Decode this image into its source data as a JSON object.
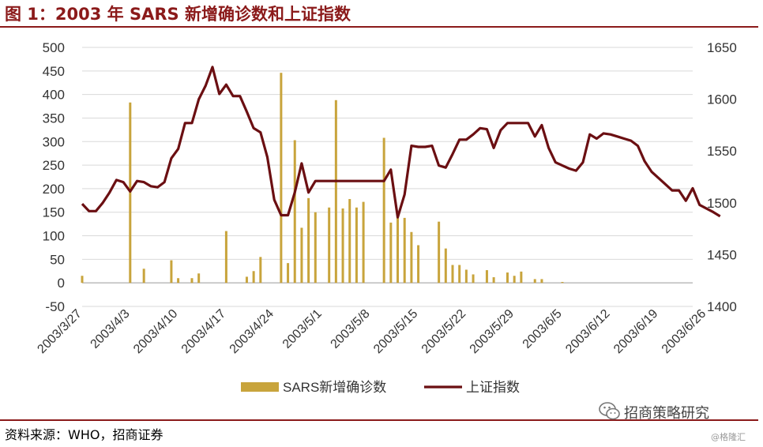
{
  "header": {
    "title": "图 1：2003 年 SARS 新增确诊数和上证指数"
  },
  "footer": {
    "source": "资料来源：WHO，招商证券"
  },
  "watermark": {
    "name": "招商策略研究",
    "sub": "@格隆汇",
    "icon": "wechat-icon"
  },
  "colors": {
    "bar": "#C8A43C",
    "line": "#6B0F12",
    "accent": "#8B1A1A",
    "grid": "#D9D9D9"
  },
  "chart_data": {
    "type": "bar+line",
    "categories": [
      "2003/3/27",
      "2003/4/3",
      "2003/4/10",
      "2003/4/17",
      "2003/4/24",
      "2003/5/1",
      "2003/5/8",
      "2003/5/15",
      "2003/5/22",
      "2003/5/29",
      "2003/6/5",
      "2003/6/12",
      "2003/6/19",
      "2003/6/26"
    ],
    "x_range": [
      0,
      89
    ],
    "left_axis": {
      "ticks": [
        "500",
        "450",
        "400",
        "350",
        "300",
        "250",
        "200",
        "150",
        "100",
        "50",
        "0",
        "-50"
      ],
      "ylim": [
        -50,
        500
      ]
    },
    "right_axis": {
      "ticks": [
        "1650",
        "1600",
        "1550",
        "1500",
        "1450",
        "1400"
      ],
      "ylim": [
        1400,
        1650
      ]
    },
    "legend": {
      "position": "bottom",
      "items": [
        "SARS新增确诊数",
        "上证指数"
      ]
    },
    "series": [
      {
        "name": "SARS新增确诊数",
        "type": "bar",
        "axis": "left",
        "points": [
          [
            0,
            15
          ],
          [
            7,
            383
          ],
          [
            9,
            30
          ],
          [
            13,
            48
          ],
          [
            14,
            10
          ],
          [
            16,
            10
          ],
          [
            17,
            20
          ],
          [
            21,
            110
          ],
          [
            24,
            13
          ],
          [
            25,
            25
          ],
          [
            26,
            55
          ],
          [
            29,
            446
          ],
          [
            30,
            42
          ],
          [
            31,
            303
          ],
          [
            32,
            117
          ],
          [
            33,
            180
          ],
          [
            34,
            150
          ],
          [
            36,
            160
          ],
          [
            37,
            388
          ],
          [
            38,
            158
          ],
          [
            39,
            178
          ],
          [
            40,
            160
          ],
          [
            41,
            172
          ],
          [
            44,
            308
          ],
          [
            45,
            128
          ],
          [
            46,
            150
          ],
          [
            47,
            138
          ],
          [
            48,
            108
          ],
          [
            49,
            80
          ],
          [
            52,
            130
          ],
          [
            53,
            73
          ],
          [
            54,
            38
          ],
          [
            55,
            38
          ],
          [
            56,
            28
          ],
          [
            57,
            18
          ],
          [
            59,
            27
          ],
          [
            60,
            12
          ],
          [
            62,
            22
          ],
          [
            63,
            15
          ],
          [
            64,
            24
          ],
          [
            66,
            8
          ],
          [
            67,
            8
          ],
          [
            70,
            2
          ]
        ]
      },
      {
        "name": "上证指数",
        "type": "line",
        "axis": "right",
        "points": [
          [
            0,
            1499
          ],
          [
            1,
            1492
          ],
          [
            2,
            1492
          ],
          [
            3,
            1500
          ],
          [
            4,
            1510
          ],
          [
            5,
            1522
          ],
          [
            6,
            1520
          ],
          [
            7,
            1511
          ],
          [
            8,
            1521
          ],
          [
            9,
            1520
          ],
          [
            10,
            1516
          ],
          [
            11,
            1515
          ],
          [
            12,
            1520
          ],
          [
            13,
            1543
          ],
          [
            14,
            1552
          ],
          [
            15,
            1577
          ],
          [
            16,
            1577
          ],
          [
            17,
            1600
          ],
          [
            18,
            1613
          ],
          [
            19,
            1631
          ],
          [
            20,
            1605
          ],
          [
            21,
            1614
          ],
          [
            22,
            1603
          ],
          [
            23,
            1603
          ],
          [
            24,
            1588
          ],
          [
            25,
            1572
          ],
          [
            26,
            1568
          ],
          [
            27,
            1544
          ],
          [
            28,
            1503
          ],
          [
            29,
            1488
          ],
          [
            30,
            1488
          ],
          [
            31,
            1510
          ],
          [
            32,
            1538
          ],
          [
            33,
            1510
          ],
          [
            34,
            1521
          ],
          [
            35,
            1521
          ],
          [
            40,
            1521
          ],
          [
            44,
            1521
          ],
          [
            45,
            1532
          ],
          [
            46,
            1486
          ],
          [
            47,
            1508
          ],
          [
            48,
            1555
          ],
          [
            49,
            1554
          ],
          [
            50,
            1554
          ],
          [
            51,
            1555
          ],
          [
            52,
            1536
          ],
          [
            53,
            1534
          ],
          [
            54,
            1547
          ],
          [
            55,
            1561
          ],
          [
            56,
            1561
          ],
          [
            57,
            1566
          ],
          [
            58,
            1572
          ],
          [
            59,
            1571
          ],
          [
            60,
            1553
          ],
          [
            61,
            1570
          ],
          [
            62,
            1577
          ],
          [
            63,
            1577
          ],
          [
            64,
            1577
          ],
          [
            65,
            1577
          ],
          [
            66,
            1564
          ],
          [
            67,
            1575
          ],
          [
            68,
            1553
          ],
          [
            69,
            1539
          ],
          [
            70,
            1536
          ],
          [
            71,
            1533
          ],
          [
            72,
            1531
          ],
          [
            73,
            1539
          ],
          [
            74,
            1566
          ],
          [
            75,
            1562
          ],
          [
            76,
            1567
          ],
          [
            77,
            1566
          ],
          [
            78,
            1564
          ],
          [
            79,
            1562
          ],
          [
            80,
            1560
          ],
          [
            81,
            1555
          ],
          [
            82,
            1540
          ],
          [
            83,
            1530
          ],
          [
            84,
            1524
          ],
          [
            85,
            1518
          ],
          [
            86,
            1512
          ],
          [
            87,
            1512
          ],
          [
            88,
            1502
          ],
          [
            89,
            1514
          ],
          [
            90,
            1498
          ],
          [
            92,
            1491
          ],
          [
            93,
            1487
          ]
        ]
      }
    ]
  }
}
